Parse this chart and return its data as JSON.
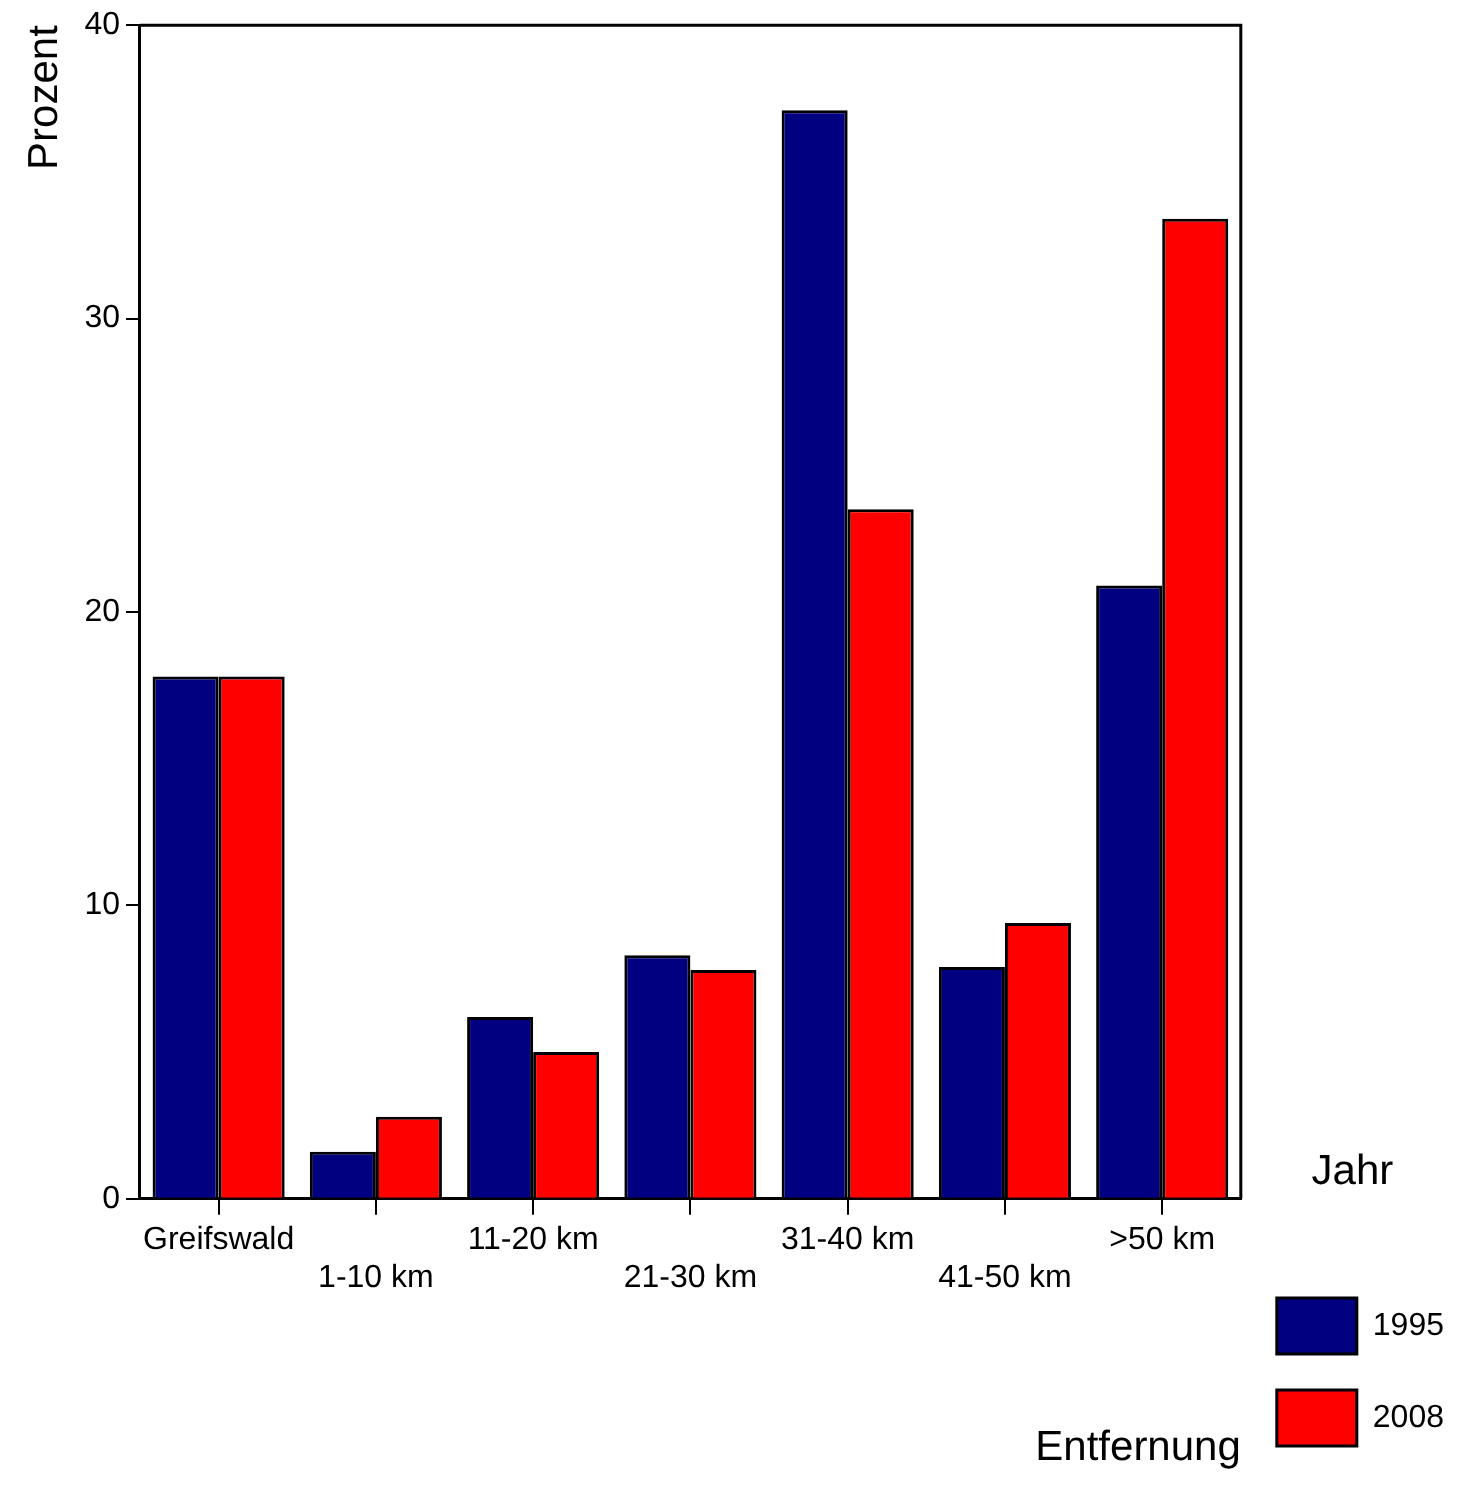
{
  "chart_data": {
    "type": "bar",
    "xlabel": "Entfernung",
    "ylabel": "Prozent",
    "legend_title": "Jahr",
    "categories": [
      "Greifswald",
      "1-10 km",
      "11-20 km",
      "21-30 km",
      "31-40 km",
      "41-50 km",
      ">50 km"
    ],
    "series": [
      {
        "name": "1995",
        "color": "#000080",
        "values": [
          17.8,
          1.6,
          6.2,
          8.3,
          37.1,
          7.9,
          20.9
        ]
      },
      {
        "name": "2008",
        "color": "#ff0000",
        "values": [
          17.8,
          2.8,
          5.0,
          7.8,
          23.5,
          9.4,
          33.4
        ]
      }
    ],
    "ylim": [
      0,
      40
    ],
    "yticks": [
      0,
      10,
      20,
      30,
      40
    ],
    "grid": false,
    "legend": "right"
  }
}
